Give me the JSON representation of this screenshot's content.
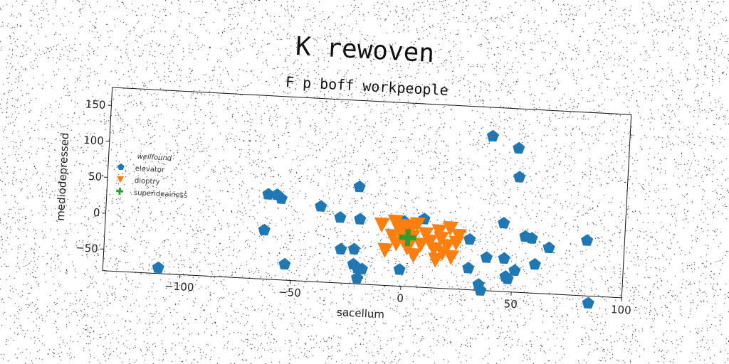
{
  "chart_data": {
    "type": "scatter",
    "title": "K rewoven",
    "subtitle": "F p boff workpeople",
    "xlabel": "sacellum",
    "ylabel": "mediodepressed",
    "xlim": [
      -135,
      100
    ],
    "ylim": [
      -80,
      175
    ],
    "x_ticks": [
      -100,
      -50,
      0,
      50,
      100
    ],
    "x_tick_labels": [
      "−100",
      "−50",
      "0",
      "50",
      "100"
    ],
    "y_ticks": [
      -50,
      0,
      50,
      100,
      150
    ],
    "y_tick_labels": [
      "−50",
      "0",
      "50",
      "100",
      "150"
    ],
    "grid": false,
    "legend": {
      "title": "wellfound",
      "placement": "center-left"
    },
    "rotation_deg": 3,
    "series": [
      {
        "name": "elevator",
        "marker": "pentagon",
        "color": "#1f77b4",
        "x": [
          -110,
          -63,
          -62,
          -58,
          -56,
          -53,
          -38,
          -29,
          -28,
          -22,
          -22,
          -21,
          -20,
          -20,
          -20,
          -18,
          -1,
          0,
          9,
          30,
          30,
          35,
          36,
          38,
          38,
          45,
          46,
          47,
          48,
          50,
          51,
          51,
          55,
          58,
          60,
          66,
          83,
          85
        ],
        "y": [
          -72,
          -12,
          38,
          38,
          33,
          -58,
          25,
          11,
          -33,
          -32,
          -53,
          55,
          -58,
          -72,
          10,
          -59,
          -57,
          10,
          15,
          -10,
          -50,
          -72,
          -80,
          -34,
          135,
          15,
          -34,
          -59,
          -62,
          120,
          80,
          -50,
          -2,
          -4,
          -40,
          -16,
          -3,
          -90
        ]
      },
      {
        "name": "dioptry",
        "marker": "triangle-down",
        "color": "#ff7f0e",
        "x": [
          -10,
          -8,
          -5,
          -4,
          -3,
          -2,
          -1,
          0,
          1,
          2,
          3,
          4,
          5,
          6,
          8,
          10,
          12,
          14,
          15,
          16,
          17,
          18,
          20,
          21,
          22,
          24,
          25
        ],
        "y": [
          5,
          -30,
          -10,
          10,
          -20,
          0,
          -5,
          -15,
          5,
          -25,
          0,
          -10,
          -35,
          8,
          -20,
          -5,
          -15,
          -25,
          -40,
          0,
          -10,
          -30,
          -20,
          5,
          -35,
          -15,
          -5
        ]
      },
      {
        "name": "superideainess",
        "marker": "plus",
        "color": "#2ca02c",
        "x": [
          2
        ],
        "y": [
          -12
        ]
      }
    ]
  }
}
